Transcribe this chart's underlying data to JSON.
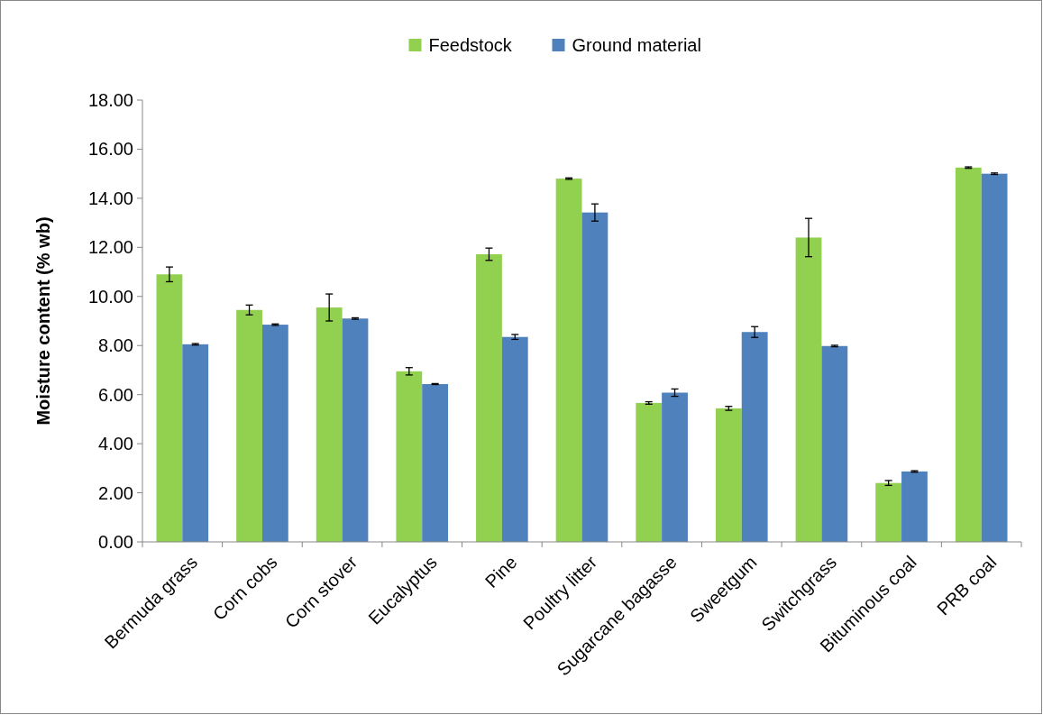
{
  "chart_data": {
    "type": "bar",
    "ylabel": "Moisture content (% wb)",
    "categories": [
      "Bermuda grass",
      "Corn cobs",
      "Corn stover",
      "Eucalyptus",
      "Pine",
      "Poultry litter",
      "Sugarcane bagasse",
      "Sweetgum",
      "Switchgrass",
      "Bituminous coal",
      "PRB coal"
    ],
    "series": [
      {
        "name": "Feedstock",
        "color": "#92d050",
        "values": [
          10.9,
          9.45,
          9.55,
          6.95,
          11.72,
          14.8,
          5.66,
          5.44,
          12.4,
          2.4,
          15.25
        ],
        "errors": [
          0.3,
          0.2,
          0.55,
          0.15,
          0.25,
          0.03,
          0.05,
          0.08,
          0.78,
          0.1,
          0.03
        ]
      },
      {
        "name": "Ground material",
        "color": "#4f81bd",
        "values": [
          8.05,
          8.85,
          9.1,
          6.43,
          8.35,
          13.42,
          6.08,
          8.55,
          7.98,
          2.87,
          15.0
        ],
        "errors": [
          0.03,
          0.03,
          0.03,
          0.02,
          0.1,
          0.35,
          0.15,
          0.22,
          0.03,
          0.03,
          0.03
        ]
      }
    ],
    "ylim": [
      0,
      18
    ],
    "yticks": [
      {
        "value": 0,
        "label": "0.00"
      },
      {
        "value": 2,
        "label": "2.00"
      },
      {
        "value": 4,
        "label": "4.00"
      },
      {
        "value": 6,
        "label": "6.00"
      },
      {
        "value": 8,
        "label": "8.00"
      },
      {
        "value": 10,
        "label": "10.00"
      },
      {
        "value": 12,
        "label": "12.00"
      },
      {
        "value": 14,
        "label": "14.00"
      },
      {
        "value": 16,
        "label": "16.00"
      },
      {
        "value": 18,
        "label": "18.00"
      }
    ],
    "grid": false,
    "legend": "top"
  }
}
